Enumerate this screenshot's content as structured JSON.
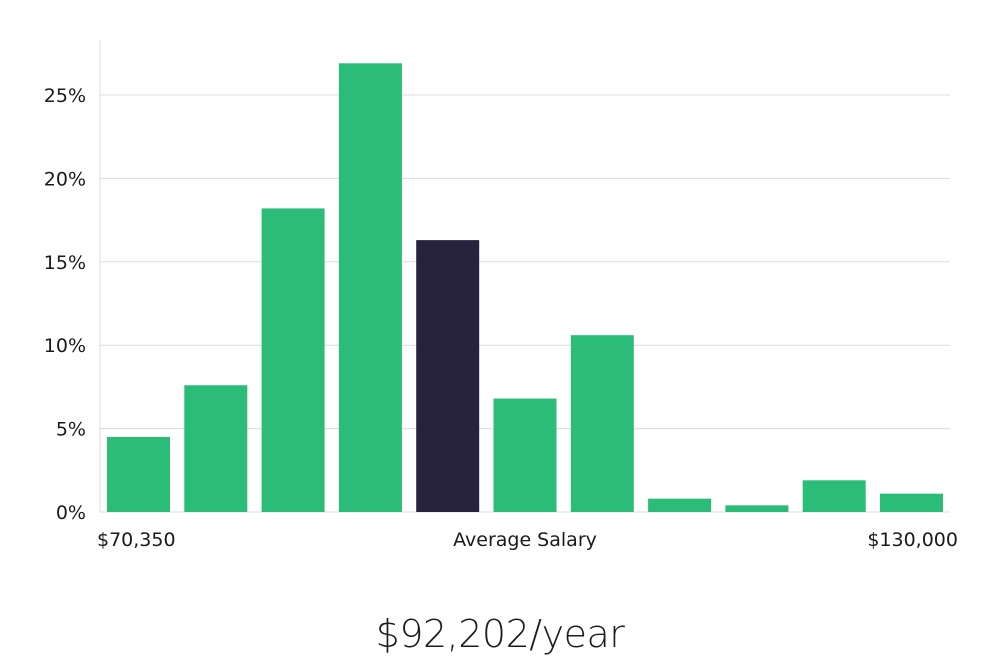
{
  "chart_data": {
    "type": "bar",
    "categories": [
      "1",
      "2",
      "3",
      "4",
      "5",
      "6",
      "7",
      "8",
      "9",
      "10",
      "11"
    ],
    "values": [
      4.5,
      7.6,
      18.2,
      26.9,
      16.3,
      6.8,
      10.6,
      0.8,
      0.4,
      1.9,
      1.1
    ],
    "highlight_index": 4,
    "ylim": [
      0,
      28
    ],
    "yticks": [
      0,
      5,
      10,
      15,
      20,
      25
    ],
    "ytick_labels": [
      "0%",
      "5%",
      "10%",
      "15%",
      "20%",
      "25%"
    ],
    "grid": true,
    "colors": {
      "bar": "#2bbd77",
      "highlight": "#27233f",
      "grid": "#dcdcdc"
    }
  },
  "x_axis": {
    "min_label": "$70,350",
    "center_label": "Average Salary",
    "max_label": "$130,000"
  },
  "average_salary": "$92,202/year"
}
